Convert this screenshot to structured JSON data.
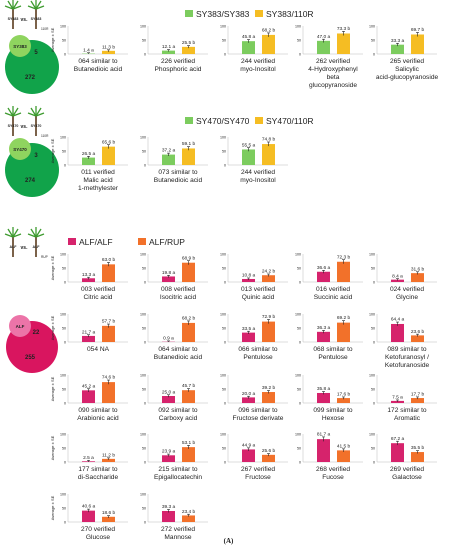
{
  "figure_label": "(A)",
  "panels": [
    {
      "icon": {
        "plant_a": "SY383",
        "vs": "vs.",
        "plant_b": "SY383",
        "plant_b_sub": "110R",
        "circle_small": "SY383",
        "shared": "5",
        "total": "272"
      },
      "legend": [
        {
          "label": "SY383/SY383",
          "color": "#7ccc5e"
        },
        {
          "label": "SY383/110R",
          "color": "#f5bd23"
        }
      ]
    },
    {
      "icon": {
        "plant_a": "SY470",
        "vs": "vs.",
        "plant_b": "SY470",
        "plant_b_sub": "110R",
        "circle_small": "SY470",
        "shared": "3",
        "total": "274"
      },
      "legend": [
        {
          "label": "SY470/SY470",
          "color": "#7ccc5e"
        },
        {
          "label": "SY470/110R",
          "color": "#f5bd23"
        }
      ]
    },
    {
      "icon": {
        "plant_a": "ALF",
        "vs": "vs.",
        "plant_b": "ALF",
        "plant_b_sub": "RUP",
        "circle_small": "ALF",
        "shared": "22",
        "total": "255"
      },
      "legend": [
        {
          "label": "ALF/ALF",
          "color": "#d6236c"
        },
        {
          "label": "ALF/RUP",
          "color": "#f2712a"
        }
      ]
    }
  ],
  "y_axis_label": "Average ± SE",
  "chart_data": [
    {
      "type": "bar",
      "panel": 0,
      "title": "064 similar to Butanedioic acid",
      "ylim": [
        0,
        100
      ],
      "ticks": [
        0,
        50,
        100
      ],
      "series": [
        {
          "values": [
            1.4
          ],
          "labels": [
            "1.4 a"
          ]
        },
        {
          "values": [
            11.3
          ],
          "labels": [
            "11.3 b"
          ]
        }
      ]
    },
    {
      "type": "bar",
      "panel": 0,
      "title": "226 verified Phosphoric acid",
      "ylim": [
        0,
        100
      ],
      "ticks": [
        0,
        50,
        100
      ],
      "series": [
        {
          "values": [
            12.1
          ],
          "labels": [
            "12.1 a"
          ]
        },
        {
          "values": [
            25.5
          ],
          "labels": [
            "25.5 b"
          ]
        }
      ]
    },
    {
      "type": "bar",
      "panel": 0,
      "title": "244 verified myo-Inositol",
      "ylim": [
        0,
        100
      ],
      "ticks": [
        0,
        50,
        100
      ],
      "series": [
        {
          "values": [
            45.8
          ],
          "labels": [
            "45.8 a"
          ]
        },
        {
          "values": [
            68.2
          ],
          "labels": [
            "68.2 b"
          ]
        }
      ]
    },
    {
      "type": "bar",
      "panel": 0,
      "title": "262 verified 4-Hydroxyphenyl beta glucopyranoside",
      "ylim": [
        0,
        100
      ],
      "ticks": [
        0,
        50,
        100
      ],
      "series": [
        {
          "values": [
            47.0
          ],
          "labels": [
            "47.0 a"
          ]
        },
        {
          "values": [
            73.3
          ],
          "labels": [
            "73.3 b"
          ]
        }
      ]
    },
    {
      "type": "bar",
      "panel": 0,
      "title": "265 verified Salicylic acid-glucopyranoside",
      "ylim": [
        0,
        100
      ],
      "ticks": [
        0,
        50,
        100
      ],
      "series": [
        {
          "values": [
            33.3
          ],
          "labels": [
            "33.3 a"
          ]
        },
        {
          "values": [
            69.7
          ],
          "labels": [
            "69.7 b"
          ]
        }
      ]
    },
    {
      "type": "bar",
      "panel": 1,
      "title": "011 verified Malic acid 1-methylester",
      "ylim": [
        0,
        100
      ],
      "ticks": [
        0,
        50,
        100
      ],
      "series": [
        {
          "values": [
            26.5
          ],
          "labels": [
            "26.5 a"
          ]
        },
        {
          "values": [
            65.6
          ],
          "labels": [
            "65.6 b"
          ]
        }
      ]
    },
    {
      "type": "bar",
      "panel": 1,
      "title": "073 similar to Butanedioic acid",
      "ylim": [
        0,
        100
      ],
      "ticks": [
        0,
        50,
        100
      ],
      "series": [
        {
          "values": [
            37.2
          ],
          "labels": [
            "37.2 a"
          ]
        },
        {
          "values": [
            59.1
          ],
          "labels": [
            "59.1 b"
          ]
        }
      ]
    },
    {
      "type": "bar",
      "panel": 1,
      "title": "244 verified myo-Inositol",
      "ylim": [
        0,
        100
      ],
      "ticks": [
        0,
        50,
        100
      ],
      "series": [
        {
          "values": [
            55.5
          ],
          "labels": [
            "55.5 a"
          ]
        },
        {
          "values": [
            74.8
          ],
          "labels": [
            "74.8 b"
          ]
        }
      ]
    },
    {
      "type": "bar",
      "panel": 2,
      "title": "003 verified Citric acid",
      "ylim": [
        0,
        100
      ],
      "ticks": [
        0,
        50,
        100
      ],
      "series": [
        {
          "values": [
            13.3
          ],
          "labels": [
            "13.3 a"
          ]
        },
        {
          "values": [
            63.0
          ],
          "labels": [
            "63.0 b"
          ]
        }
      ]
    },
    {
      "type": "bar",
      "panel": 2,
      "title": "008 verified Isocitric acid",
      "ylim": [
        0,
        100
      ],
      "ticks": [
        0,
        50,
        100
      ],
      "series": [
        {
          "values": [
            19.8
          ],
          "labels": [
            "19.8 a"
          ]
        },
        {
          "values": [
            68.9
          ],
          "labels": [
            "68.9 b"
          ]
        }
      ]
    },
    {
      "type": "bar",
      "panel": 2,
      "title": "013 verified Quinic acid",
      "ylim": [
        0,
        100
      ],
      "ticks": [
        0,
        50,
        100
      ],
      "series": [
        {
          "values": [
            10.8
          ],
          "labels": [
            "10.8 a"
          ]
        },
        {
          "values": [
            24.2
          ],
          "labels": [
            "24.2 b"
          ]
        }
      ]
    },
    {
      "type": "bar",
      "panel": 2,
      "title": "016 verified Succinic acid",
      "ylim": [
        0,
        100
      ],
      "ticks": [
        0,
        50,
        100
      ],
      "series": [
        {
          "values": [
            36.6
          ],
          "labels": [
            "36.6 a"
          ]
        },
        {
          "values": [
            72.3
          ],
          "labels": [
            "72.3 b"
          ]
        }
      ]
    },
    {
      "type": "bar",
      "panel": 2,
      "title": "024 verified Glycine",
      "ylim": [
        0,
        100
      ],
      "ticks": [
        0,
        50,
        100
      ],
      "series": [
        {
          "values": [
            8.4
          ],
          "labels": [
            "8.4 a"
          ]
        },
        {
          "values": [
            31.6
          ],
          "labels": [
            "31.6 b"
          ]
        }
      ]
    },
    {
      "type": "bar",
      "panel": 2,
      "title": "054 NA",
      "ylim": [
        0,
        100
      ],
      "ticks": [
        0,
        50,
        100
      ],
      "series": [
        {
          "values": [
            21.7
          ],
          "labels": [
            "21.7 a"
          ]
        },
        {
          "values": [
            57.7
          ],
          "labels": [
            "57.7 b"
          ]
        }
      ]
    },
    {
      "type": "bar",
      "panel": 2,
      "title": "064 similar to Butanedioic acid",
      "ylim": [
        0,
        100
      ],
      "ticks": [
        0,
        50,
        100
      ],
      "series": [
        {
          "values": [
            0.9
          ],
          "labels": [
            "0.9 a"
          ]
        },
        {
          "values": [
            68.2
          ],
          "labels": [
            "68.2 b"
          ]
        }
      ]
    },
    {
      "type": "bar",
      "panel": 2,
      "title": "066 similar to Pentulose",
      "ylim": [
        0,
        100
      ],
      "ticks": [
        0,
        50,
        100
      ],
      "series": [
        {
          "values": [
            33.5
          ],
          "labels": [
            "33.5 a"
          ]
        },
        {
          "values": [
            72.9
          ],
          "labels": [
            "72.9 b"
          ]
        }
      ]
    },
    {
      "type": "bar",
      "panel": 2,
      "title": "068 similar to Pentulose",
      "ylim": [
        0,
        100
      ],
      "ticks": [
        0,
        50,
        100
      ],
      "series": [
        {
          "values": [
            36.3
          ],
          "labels": [
            "36.3 a"
          ]
        },
        {
          "values": [
            69.2
          ],
          "labels": [
            "69.2 b"
          ]
        }
      ]
    },
    {
      "type": "bar",
      "panel": 2,
      "title": "089 similar to Ketofuranosyl / Ketofuranoside",
      "ylim": [
        0,
        100
      ],
      "ticks": [
        0,
        50,
        100
      ],
      "series": [
        {
          "values": [
            64.4
          ],
          "labels": [
            "64.4 a"
          ]
        },
        {
          "values": [
            23.6
          ],
          "labels": [
            "23.6 b"
          ]
        }
      ]
    },
    {
      "type": "bar",
      "panel": 2,
      "title": "090 similar to Arabionic acid",
      "ylim": [
        0,
        100
      ],
      "ticks": [
        0,
        50,
        100
      ],
      "series": [
        {
          "values": [
            45.2
          ],
          "labels": [
            "45.2 a"
          ]
        },
        {
          "values": [
            74.6
          ],
          "labels": [
            "74.6 b"
          ]
        }
      ]
    },
    {
      "type": "bar",
      "panel": 2,
      "title": "092 similar to Carboxy acid",
      "ylim": [
        0,
        100
      ],
      "ticks": [
        0,
        50,
        100
      ],
      "series": [
        {
          "values": [
            25.0
          ],
          "labels": [
            "25.0 a"
          ]
        },
        {
          "values": [
            45.7
          ],
          "labels": [
            "45.7 b"
          ]
        }
      ]
    },
    {
      "type": "bar",
      "panel": 2,
      "title": "096 similar to Fructose derivate",
      "ylim": [
        0,
        100
      ],
      "ticks": [
        0,
        50,
        100
      ],
      "series": [
        {
          "values": [
            20.0
          ],
          "labels": [
            "20.0 a"
          ]
        },
        {
          "values": [
            39.2
          ],
          "labels": [
            "39.2 b"
          ]
        }
      ]
    },
    {
      "type": "bar",
      "panel": 2,
      "title": "099 similar to Hexose",
      "ylim": [
        0,
        100
      ],
      "ticks": [
        0,
        50,
        100
      ],
      "series": [
        {
          "values": [
            35.8
          ],
          "labels": [
            "35.8 a"
          ]
        },
        {
          "values": [
            17.6
          ],
          "labels": [
            "17.6 b"
          ]
        }
      ]
    },
    {
      "type": "bar",
      "panel": 2,
      "title": "172 similar to Aromatic",
      "ylim": [
        0,
        100
      ],
      "ticks": [
        0,
        50,
        100
      ],
      "series": [
        {
          "values": [
            7.5
          ],
          "labels": [
            "7.5 a"
          ]
        },
        {
          "values": [
            17.7
          ],
          "labels": [
            "17.7 b"
          ]
        }
      ]
    },
    {
      "type": "bar",
      "panel": 2,
      "title": "177 similar to di-Saccharide",
      "ylim": [
        0,
        100
      ],
      "ticks": [
        0,
        50,
        100
      ],
      "series": [
        {
          "values": [
            2.5
          ],
          "labels": [
            "2.5 a"
          ]
        },
        {
          "values": [
            11.2
          ],
          "labels": [
            "11.2 b"
          ]
        }
      ]
    },
    {
      "type": "bar",
      "panel": 2,
      "title": "215 similar to Epigallocatechin",
      "ylim": [
        0,
        100
      ],
      "ticks": [
        0,
        50,
        100
      ],
      "series": [
        {
          "values": [
            23.9
          ],
          "labels": [
            "23.9 a"
          ]
        },
        {
          "values": [
            53.1
          ],
          "labels": [
            "53.1 b"
          ]
        }
      ]
    },
    {
      "type": "bar",
      "panel": 2,
      "title": "267 verified Fructose",
      "ylim": [
        0,
        100
      ],
      "ticks": [
        0,
        50,
        100
      ],
      "series": [
        {
          "values": [
            44.9
          ],
          "labels": [
            "44.9 a"
          ]
        },
        {
          "values": [
            25.6
          ],
          "labels": [
            "25.6 b"
          ]
        }
      ]
    },
    {
      "type": "bar",
      "panel": 2,
      "title": "268 verified Fucose",
      "ylim": [
        0,
        100
      ],
      "ticks": [
        0,
        50,
        100
      ],
      "series": [
        {
          "values": [
            81.7
          ],
          "labels": [
            "81.7 a"
          ]
        },
        {
          "values": [
            41.5
          ],
          "labels": [
            "41.5 b"
          ]
        }
      ]
    },
    {
      "type": "bar",
      "panel": 2,
      "title": "269 verified Galactose",
      "ylim": [
        0,
        100
      ],
      "ticks": [
        0,
        50,
        100
      ],
      "series": [
        {
          "values": [
            67.2
          ],
          "labels": [
            "67.2 a"
          ]
        },
        {
          "values": [
            35.5
          ],
          "labels": [
            "35.5 b"
          ]
        }
      ]
    },
    {
      "type": "bar",
      "panel": 2,
      "title": "270 verified Glucose",
      "ylim": [
        0,
        100
      ],
      "ticks": [
        0,
        50,
        100
      ],
      "series": [
        {
          "values": [
            40.6
          ],
          "labels": [
            "40.6 a"
          ]
        },
        {
          "values": [
            18.6
          ],
          "labels": [
            "18.6 b"
          ]
        }
      ]
    },
    {
      "type": "bar",
      "panel": 2,
      "title": "272 verified Mannose",
      "ylim": [
        0,
        100
      ],
      "ticks": [
        0,
        50,
        100
      ],
      "series": [
        {
          "values": [
            39.3
          ],
          "labels": [
            "39.3 a"
          ]
        },
        {
          "values": [
            23.4
          ],
          "labels": [
            "23.4 b"
          ]
        }
      ]
    }
  ]
}
